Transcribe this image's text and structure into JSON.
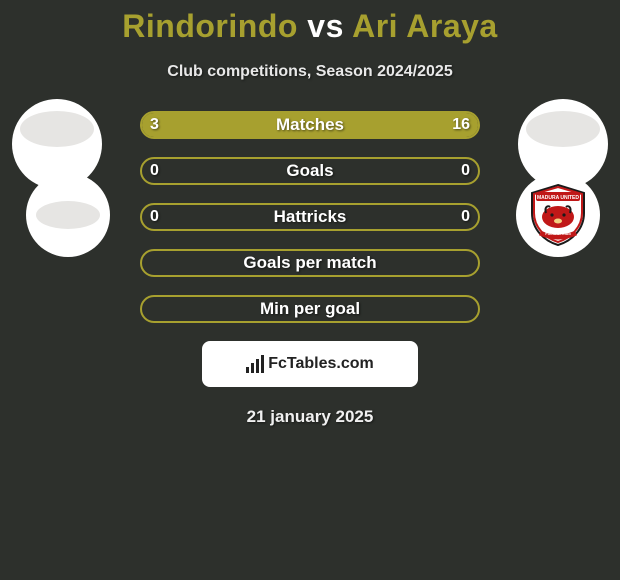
{
  "title": {
    "player1": "Rindorindo",
    "vs": "vs",
    "player2": "Ari Araya",
    "color_player": "#a7a02f",
    "color_vs": "#ffffff",
    "fontsize": 32
  },
  "subtitle": "Club competitions, Season 2024/2025",
  "colors": {
    "background": "#2d302c",
    "bar_fill": "#a7a02f",
    "bar_border": "#a7a02f",
    "text": "#ffffff",
    "watermark_bg": "#ffffff",
    "watermark_text": "#222222",
    "avatar_bg": "#ffffff",
    "avatar_inner": "#e6e5e3"
  },
  "bars": [
    {
      "label": "Matches",
      "left_val": "3",
      "right_val": "16",
      "left_pct": 16,
      "right_pct": 84,
      "show_vals": true
    },
    {
      "label": "Goals",
      "left_val": "0",
      "right_val": "0",
      "left_pct": 0,
      "right_pct": 0,
      "show_vals": true
    },
    {
      "label": "Hattricks",
      "left_val": "0",
      "right_val": "0",
      "left_pct": 0,
      "right_pct": 0,
      "show_vals": true
    },
    {
      "label": "Goals per match",
      "left_val": "",
      "right_val": "",
      "left_pct": 0,
      "right_pct": 0,
      "show_vals": false
    },
    {
      "label": "Min per goal",
      "left_val": "",
      "right_val": "",
      "left_pct": 0,
      "right_pct": 0,
      "show_vals": false
    }
  ],
  "watermark": "FcTables.com",
  "date": "21 january 2025",
  "club_right": {
    "name": "MADURA UNITED",
    "shield_bg": "#ffffff",
    "banner_color": "#c01818",
    "bull_color": "#c01818",
    "outline": "#1a1a1a"
  }
}
